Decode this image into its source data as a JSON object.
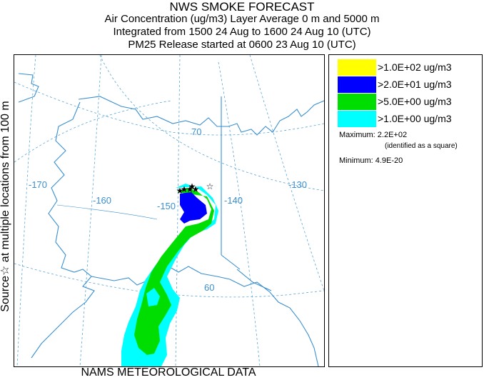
{
  "titles": {
    "main": "NWS SMOKE FORECAST",
    "line1": "Air Concentration (ug/m3) Layer Average    0 m and  5000 m",
    "line2": "Integrated from 1500 24 Aug to 1600 24 Aug 10 (UTC)",
    "line3": "PM25 Release started at 0600 23 Aug 10 (UTC)"
  },
  "side_label": "Source☆   at multiple locations   from   100 m",
  "footer": "NAMS METEOROLOGICAL DATA",
  "map": {
    "lat_labels": [
      "70",
      "60"
    ],
    "lon_labels": [
      "-170",
      "-160",
      "-150",
      "-140",
      "-130"
    ],
    "colors": {
      "coast": "#3a8fd0",
      "grid": "#5aa6d6",
      "label": "#3a8fd0"
    }
  },
  "legend": {
    "items": [
      {
        "label": ">1.0E+02 ug/m3",
        "color": "#ffff00"
      },
      {
        "label": ">2.0E+01 ug/m3",
        "color": "#0000ff"
      },
      {
        "label": ">5.0E+00 ug/m3",
        "color": "#00dd00"
      },
      {
        "label": ">1.0E+00 ug/m3",
        "color": "#00ffff"
      }
    ],
    "maximum": "Maximum: 2.2E+02",
    "maximum_note": "(identified as a square)",
    "minimum": "Minimum: 4.9E-20"
  }
}
